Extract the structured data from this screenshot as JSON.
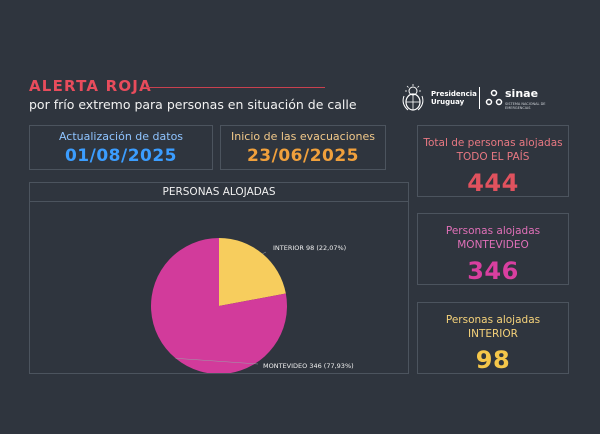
{
  "header": {
    "title": "ALERTA ROJA",
    "subtitle": "por frío extremo para personas en situación de calle"
  },
  "logos": {
    "presidencia_line1": "Presidencia",
    "presidencia_line2": "Uruguay",
    "sinae": "sinae",
    "sinae_sub": "SISTEMA NACIONAL DE EMERGENCIAS"
  },
  "cards": {
    "update": {
      "label": "Actualización de datos",
      "value": "01/08/2025",
      "color": "#3b9dff"
    },
    "evac": {
      "label": "Inicio de las evacuaciones",
      "value": "23/06/2025",
      "color": "#f0a03c"
    },
    "total": {
      "label": "Total de personas alojadas",
      "sub": "TODO EL PAÍS",
      "value": "444",
      "color": "#e0525e"
    },
    "mvd": {
      "label": "Personas alojadas",
      "sub": "MONTEVIDEO",
      "value": "346",
      "color": "#d93fa0"
    },
    "int": {
      "label": "Personas alojadas",
      "sub": "INTERIOR",
      "value": "98",
      "color": "#f5c74a"
    }
  },
  "chart_data": {
    "type": "pie",
    "title": "PERSONAS ALOJADAS",
    "slices": [
      {
        "name": "INTERIOR",
        "value": 98,
        "percent": "22,07%",
        "color": "#f7cd5d",
        "label": "INTERIOR 98 (22,07%)"
      },
      {
        "name": "MONTEVIDEO",
        "value": 346,
        "percent": "77,93%",
        "color": "#d23b9b",
        "label": "MONTEVIDEO 346 (77,93%)"
      }
    ]
  }
}
